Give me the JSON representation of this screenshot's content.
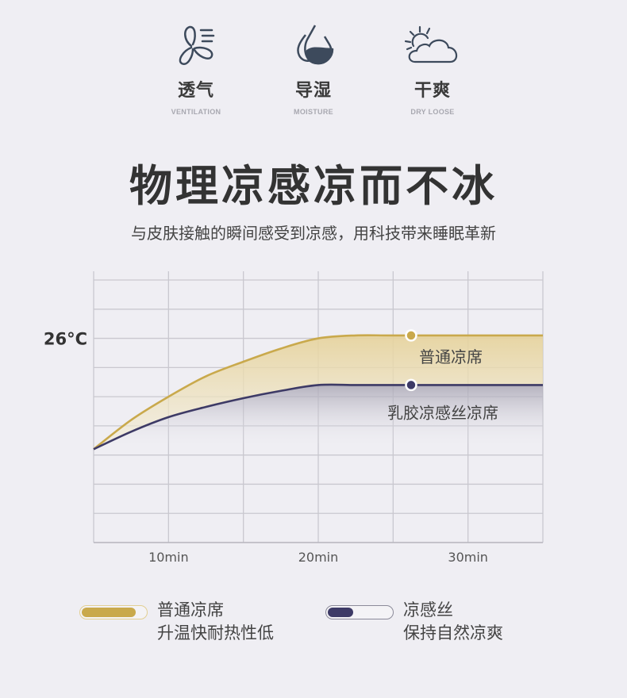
{
  "features": [
    {
      "icon": "fan-icon",
      "label": "透气",
      "sublabel": "VENTILATION"
    },
    {
      "icon": "water-drop-icon",
      "label": "导湿",
      "sublabel": "MOISTURE"
    },
    {
      "icon": "sun-cloud-icon",
      "label": "干爽",
      "sublabel": "DRY  LOOSE"
    }
  ],
  "title": "物理凉感凉而不冰",
  "subtitle": "与皮肤接触的瞬间感受到凉感，用科技带来睡眠革新",
  "colors": {
    "background": "#efeef3",
    "regular": "#c9a94c",
    "latex": "#3d3a66",
    "grid": "#c9c8cf"
  },
  "chart_data": {
    "type": "line",
    "title": "",
    "xlabel": "",
    "ylabel": "",
    "x": [
      5,
      7.5,
      10,
      12.5,
      15,
      17.5,
      20,
      22.5,
      25,
      30,
      35
    ],
    "xlim": [
      5,
      35
    ],
    "ylim": [
      19,
      28.3
    ],
    "xticks": [
      {
        "value": 10,
        "label": "10min"
      },
      {
        "value": 20,
        "label": "20min"
      },
      {
        "value": 30,
        "label": "30min"
      }
    ],
    "yticks": [
      {
        "value": 26,
        "label": "26°C"
      }
    ],
    "grid": true,
    "series": [
      {
        "name": "普通凉席",
        "color": "#c9a94c",
        "values": [
          22.2,
          23.2,
          24.0,
          24.7,
          25.2,
          25.65,
          26.0,
          26.1,
          26.1,
          26.1,
          26.1
        ],
        "marker_x": 26.2
      },
      {
        "name": "乳胶凉感丝凉席",
        "color": "#3d3a66",
        "values": [
          22.2,
          22.8,
          23.3,
          23.65,
          23.95,
          24.2,
          24.4,
          24.4,
          24.4,
          24.4,
          24.4
        ],
        "marker_x": 26.2
      }
    ]
  },
  "legend": [
    {
      "line1": "普通凉席",
      "line2": "升温快耐热性低",
      "color": "#c9a94c",
      "fill_fraction": 0.85
    },
    {
      "line1": "凉感丝",
      "line2": "保持自然凉爽",
      "color": "#3d3a66",
      "fill_fraction": 0.4
    }
  ]
}
